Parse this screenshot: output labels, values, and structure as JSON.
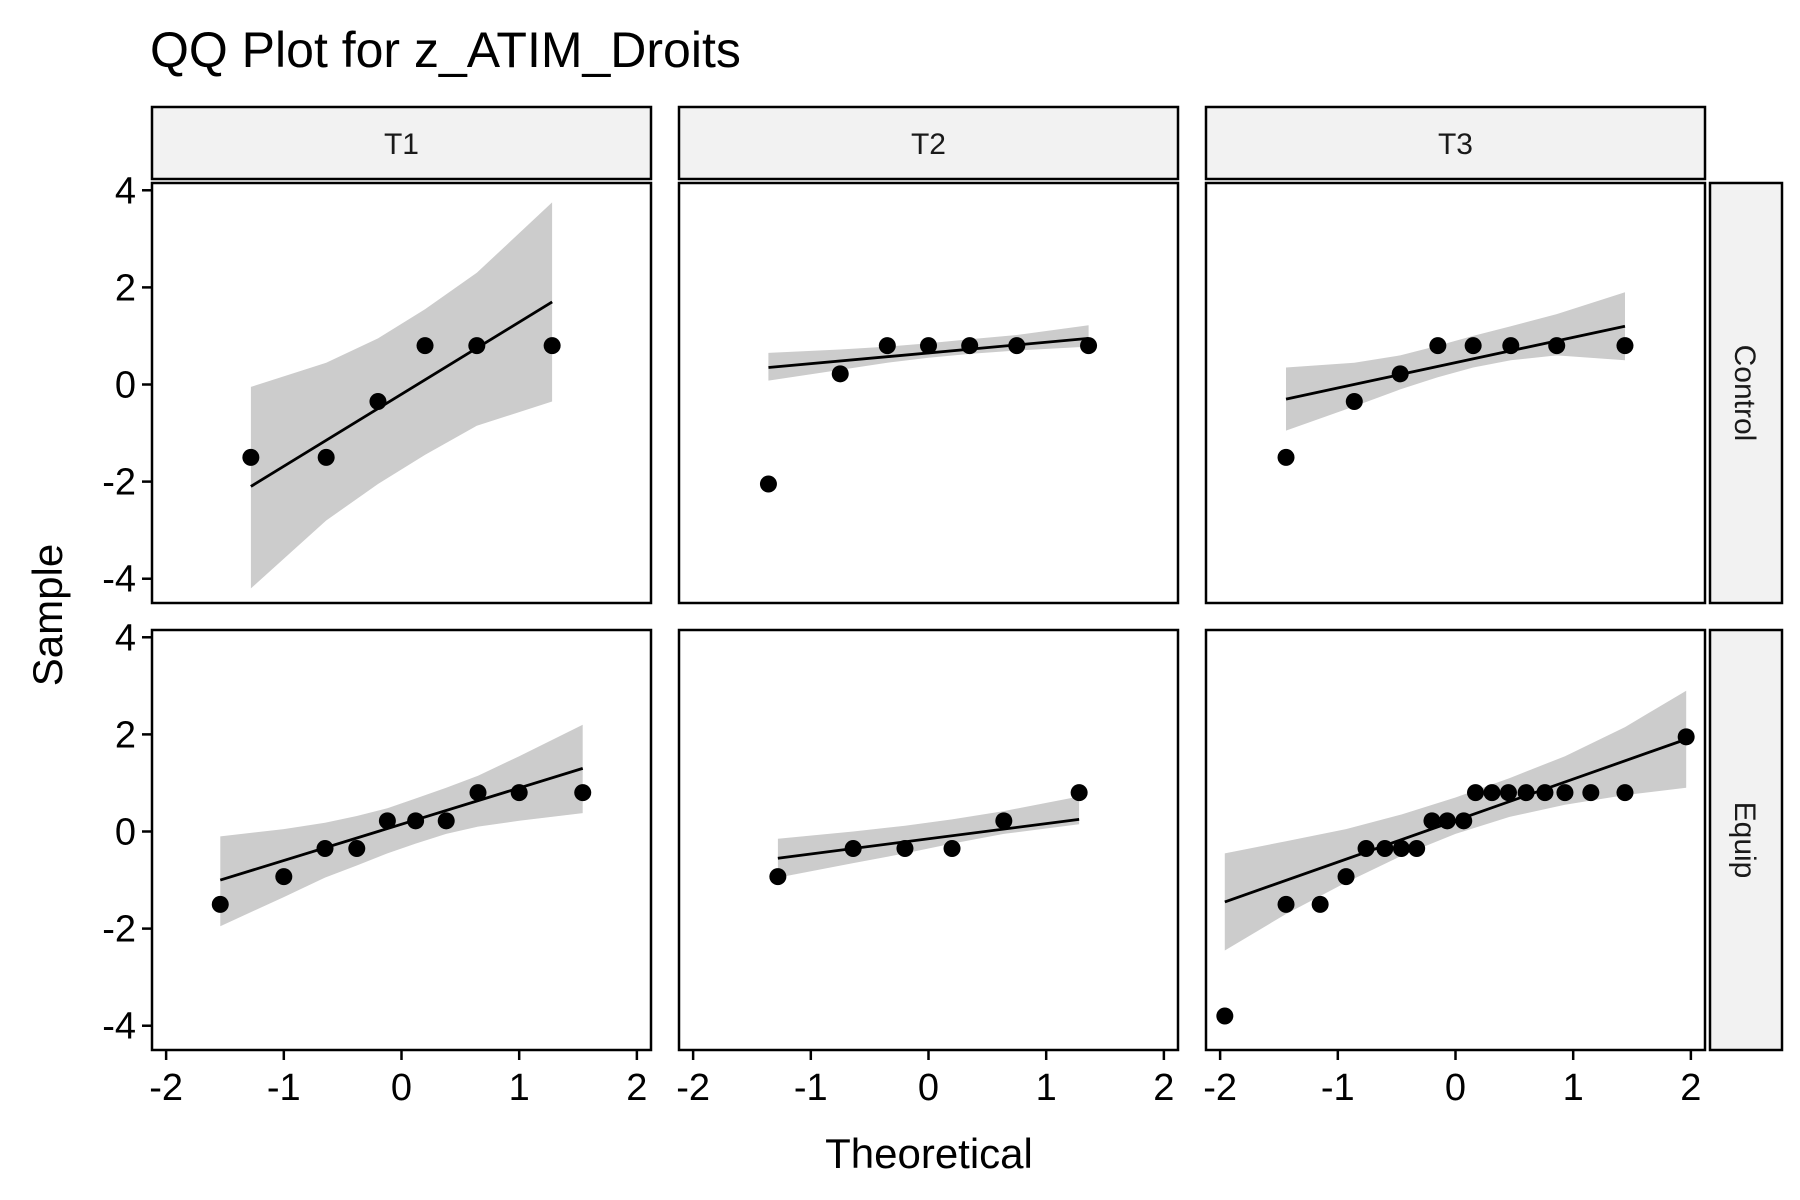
{
  "chart_data": {
    "type": "scatter",
    "title": "QQ Plot for z_ATIM_Droits",
    "xlabel": "Theoretical",
    "ylabel": "Sample",
    "xlim": [
      -2.12,
      2.12
    ],
    "ylim": [
      -4.5,
      4.15
    ],
    "xticks": [
      -2,
      -1,
      0,
      1,
      2
    ],
    "yticks": [
      -4,
      -2,
      0,
      2,
      4
    ],
    "columns": [
      "T1",
      "T2",
      "T3"
    ],
    "rows": [
      "Control",
      "Equip"
    ],
    "panels": [
      {
        "col": "T1",
        "row": "Control",
        "points": [
          [
            -1.28,
            -1.5
          ],
          [
            -0.64,
            -1.5
          ],
          [
            -0.2,
            -0.35
          ],
          [
            0.2,
            0.8
          ],
          [
            0.64,
            0.8
          ],
          [
            1.28,
            0.8
          ]
        ],
        "line": [
          [
            -1.28,
            -2.1
          ],
          [
            1.28,
            1.7
          ]
        ],
        "band": {
          "x": [
            -1.28,
            -0.64,
            -0.2,
            0.2,
            0.64,
            1.28
          ],
          "lower": [
            -4.2,
            -2.8,
            -2.05,
            -1.45,
            -0.85,
            -0.35
          ],
          "upper": [
            -0.05,
            0.45,
            0.95,
            1.55,
            2.3,
            3.75
          ]
        }
      },
      {
        "col": "T2",
        "row": "Control",
        "points": [
          [
            -1.36,
            -2.05
          ],
          [
            -0.75,
            0.22
          ],
          [
            -0.35,
            0.8
          ],
          [
            0.0,
            0.8
          ],
          [
            0.35,
            0.8
          ],
          [
            0.75,
            0.8
          ],
          [
            1.36,
            0.8
          ]
        ],
        "line": [
          [
            -1.36,
            0.35
          ],
          [
            1.36,
            0.95
          ]
        ],
        "band": {
          "x": [
            -1.36,
            -0.75,
            -0.35,
            0.0,
            0.35,
            0.75,
            1.36
          ],
          "lower": [
            0.08,
            0.3,
            0.45,
            0.55,
            0.63,
            0.7,
            0.78
          ],
          "upper": [
            0.65,
            0.72,
            0.78,
            0.85,
            0.93,
            1.02,
            1.22
          ]
        }
      },
      {
        "col": "T3",
        "row": "Control",
        "points": [
          [
            -1.44,
            -1.5
          ],
          [
            -0.86,
            -0.35
          ],
          [
            -0.47,
            0.22
          ],
          [
            -0.15,
            0.8
          ],
          [
            0.15,
            0.8
          ],
          [
            0.47,
            0.8
          ],
          [
            0.86,
            0.8
          ],
          [
            1.44,
            0.8
          ]
        ],
        "line": [
          [
            -1.44,
            -0.3
          ],
          [
            1.44,
            1.2
          ]
        ],
        "band": {
          "x": [
            -1.44,
            -0.86,
            -0.47,
            -0.15,
            0.15,
            0.47,
            0.86,
            1.44
          ],
          "lower": [
            -0.95,
            -0.45,
            -0.1,
            0.15,
            0.35,
            0.5,
            0.6,
            0.5
          ],
          "upper": [
            0.35,
            0.45,
            0.6,
            0.8,
            1.0,
            1.2,
            1.45,
            1.9
          ]
        }
      },
      {
        "col": "T1",
        "row": "Equip",
        "points": [
          [
            -1.54,
            -1.5
          ],
          [
            -1.0,
            -0.93
          ],
          [
            -0.65,
            -0.35
          ],
          [
            -0.38,
            -0.35
          ],
          [
            -0.12,
            0.22
          ],
          [
            0.12,
            0.22
          ],
          [
            0.38,
            0.22
          ],
          [
            0.65,
            0.8
          ],
          [
            1.0,
            0.8
          ],
          [
            1.54,
            0.8
          ]
        ],
        "line": [
          [
            -1.54,
            -1.0
          ],
          [
            1.54,
            1.3
          ]
        ],
        "band": {
          "x": [
            -1.54,
            -1.0,
            -0.65,
            -0.38,
            -0.12,
            0.12,
            0.38,
            0.65,
            1.0,
            1.54
          ],
          "lower": [
            -1.95,
            -1.35,
            -0.95,
            -0.7,
            -0.45,
            -0.25,
            -0.05,
            0.1,
            0.22,
            0.38
          ],
          "upper": [
            -0.1,
            0.05,
            0.18,
            0.32,
            0.48,
            0.68,
            0.9,
            1.15,
            1.55,
            2.2
          ]
        }
      },
      {
        "col": "T2",
        "row": "Equip",
        "points": [
          [
            -1.28,
            -0.93
          ],
          [
            -0.64,
            -0.35
          ],
          [
            -0.2,
            -0.35
          ],
          [
            0.2,
            -0.35
          ],
          [
            0.64,
            0.22
          ],
          [
            1.28,
            0.8
          ]
        ],
        "line": [
          [
            -1.28,
            -0.55
          ],
          [
            1.28,
            0.25
          ]
        ],
        "band": {
          "x": [
            -1.28,
            -0.64,
            -0.2,
            0.2,
            0.64,
            1.28
          ],
          "lower": [
            -0.95,
            -0.65,
            -0.45,
            -0.25,
            -0.05,
            0.15
          ],
          "upper": [
            -0.15,
            0.0,
            0.12,
            0.25,
            0.42,
            0.72
          ]
        }
      },
      {
        "col": "T3",
        "row": "Equip",
        "points": [
          [
            -1.96,
            -3.8
          ],
          [
            -1.44,
            -1.5
          ],
          [
            -1.15,
            -1.5
          ],
          [
            -0.93,
            -0.93
          ],
          [
            -0.76,
            -0.35
          ],
          [
            -0.6,
            -0.35
          ],
          [
            -0.46,
            -0.35
          ],
          [
            -0.33,
            -0.35
          ],
          [
            -0.2,
            0.22
          ],
          [
            -0.07,
            0.22
          ],
          [
            0.07,
            0.22
          ],
          [
            0.17,
            0.8
          ],
          [
            0.31,
            0.8
          ],
          [
            0.45,
            0.8
          ],
          [
            0.6,
            0.8
          ],
          [
            0.76,
            0.8
          ],
          [
            0.93,
            0.8
          ],
          [
            1.15,
            0.8
          ],
          [
            1.44,
            0.8
          ],
          [
            1.96,
            1.95
          ]
        ],
        "line": [
          [
            -1.96,
            -1.45
          ],
          [
            1.96,
            1.9
          ]
        ],
        "band": {
          "x": [
            -1.96,
            -1.44,
            -0.93,
            -0.46,
            0.0,
            0.46,
            0.93,
            1.44,
            1.96
          ],
          "lower": [
            -2.45,
            -1.7,
            -1.05,
            -0.5,
            -0.05,
            0.3,
            0.55,
            0.75,
            0.9
          ],
          "upper": [
            -0.45,
            -0.2,
            0.05,
            0.35,
            0.7,
            1.1,
            1.55,
            2.15,
            2.9
          ]
        }
      }
    ]
  }
}
